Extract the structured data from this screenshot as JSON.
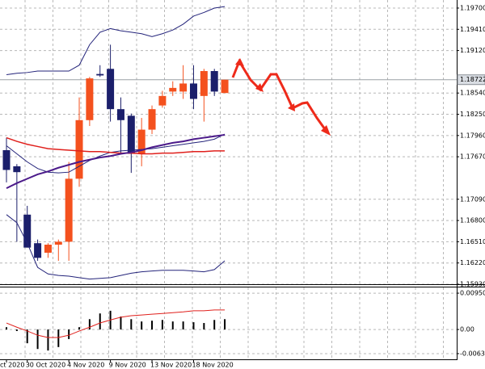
{
  "chart_data": [
    {
      "type": "candlestick",
      "categories": [
        "ct 2020",
        null,
        "30 Oct 2020",
        null,
        null,
        null,
        "4 Nov 2020",
        null,
        null,
        null,
        "9 Nov 2020",
        null,
        null,
        null,
        "13 Nov 2020",
        null,
        null,
        null,
        "18 Nov 2020",
        null,
        null,
        null
      ],
      "open": [
        1.1776,
        1.1754,
        1.1688,
        1.1649,
        1.1636,
        1.1647,
        1.1651,
        1.1737,
        1.1817,
        1.188,
        1.1887,
        1.1832,
        1.1823,
        1.1771,
        1.1804,
        1.1837,
        1.1856,
        1.1856,
        1.1867,
        1.185,
        1.1884,
        1.1854
      ],
      "high": [
        1.1793,
        1.1757,
        1.17,
        1.1654,
        1.1649,
        1.1654,
        1.176,
        1.1848,
        1.1876,
        1.1892,
        1.192,
        1.1848,
        1.1826,
        1.182,
        1.1837,
        1.1857,
        1.187,
        1.1892,
        1.1892,
        1.1887,
        1.1887,
        1.18722
      ],
      "low": [
        1.1732,
        1.1651,
        1.1643,
        1.1625,
        1.1629,
        1.1625,
        1.1625,
        1.1726,
        1.1809,
        1.1876,
        1.1815,
        1.1771,
        1.1745,
        1.1754,
        1.1798,
        1.1834,
        1.185,
        1.1846,
        1.1832,
        1.1815,
        1.185,
        1.1854
      ],
      "close": [
        1.1749,
        1.1746,
        1.1643,
        1.1629,
        1.1647,
        1.1651,
        1.1737,
        1.1817,
        1.1874,
        1.1878,
        1.1832,
        1.1817,
        1.1771,
        1.1804,
        1.1832,
        1.185,
        1.1861,
        1.1867,
        1.1846,
        1.1884,
        1.1856,
        1.18722
      ],
      "up_color": "#f4511e",
      "down_color": "#1b1f6b",
      "overlays": [
        {
          "color": "#23237a",
          "width": 1,
          "values": [
            1.1879,
            1.1881,
            1.1882,
            1.1884,
            1.1884,
            1.1884,
            1.1884,
            1.1892,
            1.192,
            1.1937,
            1.1942,
            1.1939,
            1.1937,
            1.1935,
            1.1931,
            1.1935,
            1.194,
            1.1948,
            1.1959,
            1.1964,
            1.197,
            1.1972
          ]
        },
        {
          "color": "#23237a",
          "width": 1,
          "values": [
            1.1688,
            1.1677,
            1.1649,
            1.1616,
            1.1607,
            1.1605,
            1.1604,
            1.1602,
            1.16,
            1.1601,
            1.1602,
            1.1605,
            1.1608,
            1.161,
            1.1611,
            1.1612,
            1.1612,
            1.1612,
            1.1611,
            1.161,
            1.1613,
            1.1625
          ]
        },
        {
          "color": "#23237a",
          "width": 1,
          "values": [
            1.1782,
            1.1771,
            1.176,
            1.1751,
            1.1746,
            1.1745,
            1.1746,
            1.1754,
            1.1762,
            1.1768,
            1.1773,
            1.1775,
            1.1776,
            1.1777,
            1.1778,
            1.178,
            1.1782,
            1.1784,
            1.1786,
            1.1788,
            1.1791,
            1.1798
          ]
        },
        {
          "color": "#e0201c",
          "width": 1.5,
          "values": [
            1.1793,
            1.1788,
            1.1784,
            1.1781,
            1.1778,
            1.1777,
            1.1776,
            1.1775,
            1.1774,
            1.1774,
            1.1773,
            1.1772,
            1.1772,
            1.1771,
            1.1771,
            1.1772,
            1.1772,
            1.1773,
            1.1774,
            1.1774,
            1.1775,
            1.1775
          ]
        },
        {
          "color": "#4b1a8a",
          "width": 2,
          "values": [
            1.1724,
            1.1731,
            1.1737,
            1.1743,
            1.1747,
            1.1752,
            1.1756,
            1.176,
            1.1763,
            1.1766,
            1.1768,
            1.1771,
            1.1773,
            1.1776,
            1.178,
            1.1783,
            1.1786,
            1.1788,
            1.1791,
            1.1793,
            1.1795,
            1.1797
          ]
        }
      ],
      "current_price": 1.18722,
      "ylim": [
        1.1593,
        1.1981
      ],
      "yticks": [
        {
          "value": 1.197,
          "label": "1.19700"
        },
        {
          "value": 1.1941,
          "label": "1.19410"
        },
        {
          "value": 1.1912,
          "label": "1.19120"
        },
        {
          "value": 1.1854,
          "label": "1.18540"
        },
        {
          "value": 1.1825,
          "label": "1.18250"
        },
        {
          "value": 1.1796,
          "label": "1.17960"
        },
        {
          "value": 1.1767,
          "label": "1.17670"
        },
        {
          "value": 1.1709,
          "label": "1.17090"
        },
        {
          "value": 1.168,
          "label": "1.16800"
        },
        {
          "value": 1.1651,
          "label": "1.16510"
        },
        {
          "value": 1.1622,
          "label": "1.16220"
        },
        {
          "value": 1.1593,
          "label": "1.15930"
        }
      ],
      "grid": true
    },
    {
      "type": "macd",
      "values": [
        0.0006,
        -0.0004,
        -0.0036,
        -0.0051,
        -0.0055,
        -0.0046,
        -0.0025,
        0.0006,
        0.0027,
        0.0042,
        0.0049,
        0.0034,
        0.0027,
        0.0021,
        0.0023,
        0.0025,
        0.0021,
        0.0021,
        0.0019,
        0.0017,
        0.0025,
        0.0027
      ],
      "color": "#000000",
      "signal": {
        "color": "#e0201c",
        "values": [
          0.0017,
          0.0006,
          -0.0004,
          -0.0015,
          -0.0021,
          -0.0021,
          -0.0015,
          -0.0004,
          0.0006,
          0.0017,
          0.0025,
          0.0032,
          0.0036,
          0.0038,
          0.004,
          0.0042,
          0.0044,
          0.0046,
          0.0049,
          0.0049,
          0.0051,
          0.0051
        ]
      },
      "ylim": [
        -0.0078,
        0.011
      ],
      "yticks": [
        0.009506,
        {
          "value": 0,
          "label": "0.00"
        },
        -0.00631
      ],
      "grid": true
    }
  ]
}
